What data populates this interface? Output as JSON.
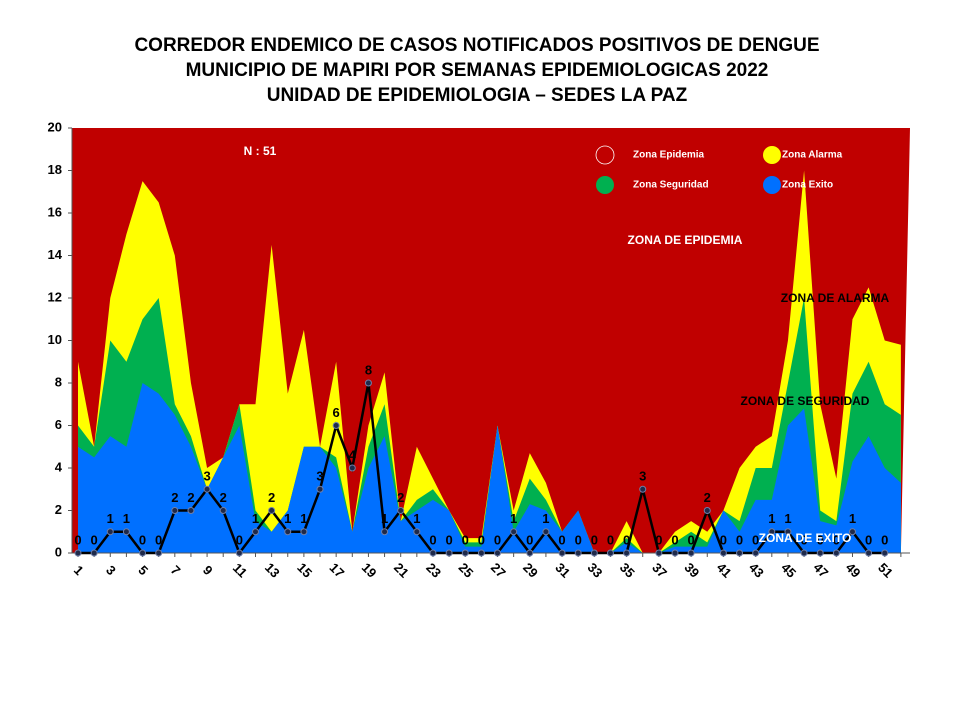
{
  "chart_data": {
    "type": "area",
    "title": [
      "CORREDOR ENDEMICO DE CASOS NOTIFICADOS POSITIVOS DE DENGUE",
      "MUNICIPIO DE MAPIRI POR SEMANAS EPIDEMIOLOGICAS 2022",
      "UNIDAD DE EPIDEMIOLOGIA – SEDES LA PAZ"
    ],
    "categories": [
      1,
      null,
      3,
      null,
      5,
      null,
      7,
      null,
      9,
      null,
      11,
      null,
      13,
      null,
      15,
      null,
      17,
      null,
      19,
      null,
      21,
      null,
      23,
      null,
      25,
      null,
      27,
      null,
      29,
      null,
      31,
      null,
      33,
      null,
      35,
      null,
      37,
      null,
      39,
      null,
      41,
      null,
      43,
      null,
      45,
      null,
      47,
      null,
      49,
      null,
      51,
      null
    ],
    "ylim": [
      0,
      20
    ],
    "yticks": [
      0,
      2,
      4,
      6,
      8,
      10,
      12,
      14,
      16,
      18,
      20
    ],
    "series": [
      {
        "name": "Zona Epidemia",
        "color": "#c00000",
        "values": [
          20,
          20,
          20,
          20,
          20,
          20,
          20,
          20,
          20,
          20,
          20,
          20,
          20,
          20,
          20,
          20,
          20,
          20,
          20,
          20,
          20,
          20,
          20,
          20,
          20,
          20,
          20,
          20,
          20,
          20,
          20,
          20,
          20,
          20,
          20,
          20,
          20,
          20,
          20,
          20,
          20,
          20,
          20,
          20,
          20,
          20,
          20,
          20,
          20,
          20,
          20,
          20
        ]
      },
      {
        "name": "Zona Alarma",
        "color": "#ffff00",
        "values": [
          9,
          5,
          12,
          15,
          17.5,
          16.5,
          14,
          8,
          4,
          4.5,
          7,
          7,
          14.5,
          7.5,
          10.5,
          5,
          9,
          1,
          6,
          8.5,
          1.5,
          5,
          3.5,
          2,
          0.7,
          0.7,
          6,
          2,
          4.7,
          3.3,
          1,
          2,
          0,
          0,
          1.5,
          0,
          0,
          1,
          1.5,
          1,
          2,
          4,
          5,
          5.5,
          10,
          18,
          7,
          3.5,
          11,
          12.5,
          10,
          9.8
        ]
      },
      {
        "name": "Zona Seguridad",
        "color": "#00b050",
        "values": [
          6,
          5,
          10,
          9,
          11,
          12,
          7,
          5.5,
          3,
          4.5,
          7,
          2,
          1,
          2,
          5,
          5,
          4.5,
          1,
          5,
          7,
          1.5,
          2.5,
          3,
          2,
          0.5,
          0.5,
          6,
          1.5,
          3.5,
          2.5,
          1,
          2,
          0,
          0,
          0.7,
          0,
          0,
          0.5,
          1,
          0.5,
          2,
          1.5,
          4,
          4,
          8,
          12,
          2,
          1.5,
          7.5,
          9,
          7,
          6.5
        ]
      },
      {
        "name": "Zona Exito",
        "color": "#0070ff",
        "values": [
          5,
          4.5,
          5.5,
          5,
          8,
          7.5,
          6.5,
          5,
          3,
          4.5,
          6,
          1.5,
          1,
          2,
          5,
          5,
          4,
          1,
          4,
          5.5,
          1.5,
          2,
          2.5,
          2,
          0.3,
          0.3,
          6,
          1,
          2.3,
          2,
          1,
          2,
          0,
          0,
          0.5,
          0,
          0,
          0.3,
          0.3,
          0.3,
          2,
          1,
          2.5,
          2.5,
          6,
          6.8,
          1.5,
          1.3,
          4.3,
          5.5,
          4,
          3.3
        ]
      }
    ],
    "cases": {
      "type": "line",
      "color": "#000000",
      "values": [
        0,
        0,
        1,
        1,
        0,
        0,
        2,
        2,
        3,
        2,
        0,
        1,
        2,
        1,
        1,
        3,
        6,
        4,
        8,
        1,
        2,
        1,
        0,
        0,
        0,
        0,
        0,
        1,
        0,
        1,
        0,
        0,
        0,
        0,
        0,
        3,
        0,
        0,
        0,
        2,
        0,
        0,
        0,
        1,
        1,
        0,
        0,
        0,
        1,
        0,
        0,
        null
      ]
    },
    "annotations": [
      {
        "text": "N : 51",
        "color": "#ffffff"
      },
      {
        "text": "ZONA DE EPIDEMIA",
        "color": "#ffffff"
      },
      {
        "text": "ZONA DE ALARMA",
        "color": "#000000"
      },
      {
        "text": "ZONA DE  SEGURIDAD",
        "color": "#000000"
      },
      {
        "text": "ZONA DE EXITO",
        "color": "#ffffff"
      }
    ]
  }
}
